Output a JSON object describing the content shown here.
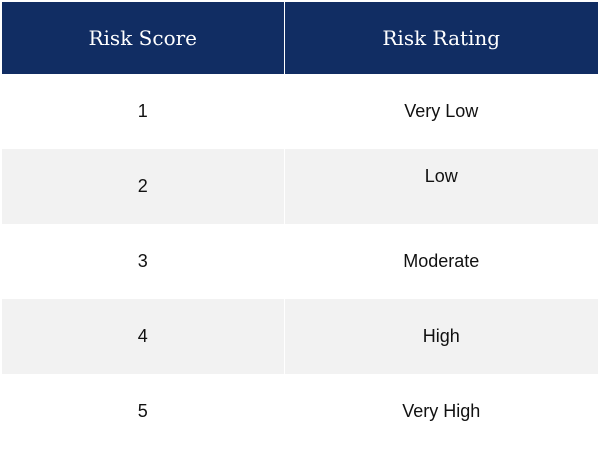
{
  "table": {
    "headers": {
      "score": "Risk Score",
      "rating": "Risk Rating"
    },
    "rows": [
      {
        "score": "1",
        "rating": "Very Low"
      },
      {
        "score": "2",
        "rating": "Low"
      },
      {
        "score": "3",
        "rating": "Moderate"
      },
      {
        "score": "4",
        "rating": "High"
      },
      {
        "score": "5",
        "rating": "Very High"
      }
    ]
  },
  "colors": {
    "header_background": "#112d63",
    "header_text": "#ffffff",
    "stripe_background": "#f2f2f2"
  }
}
